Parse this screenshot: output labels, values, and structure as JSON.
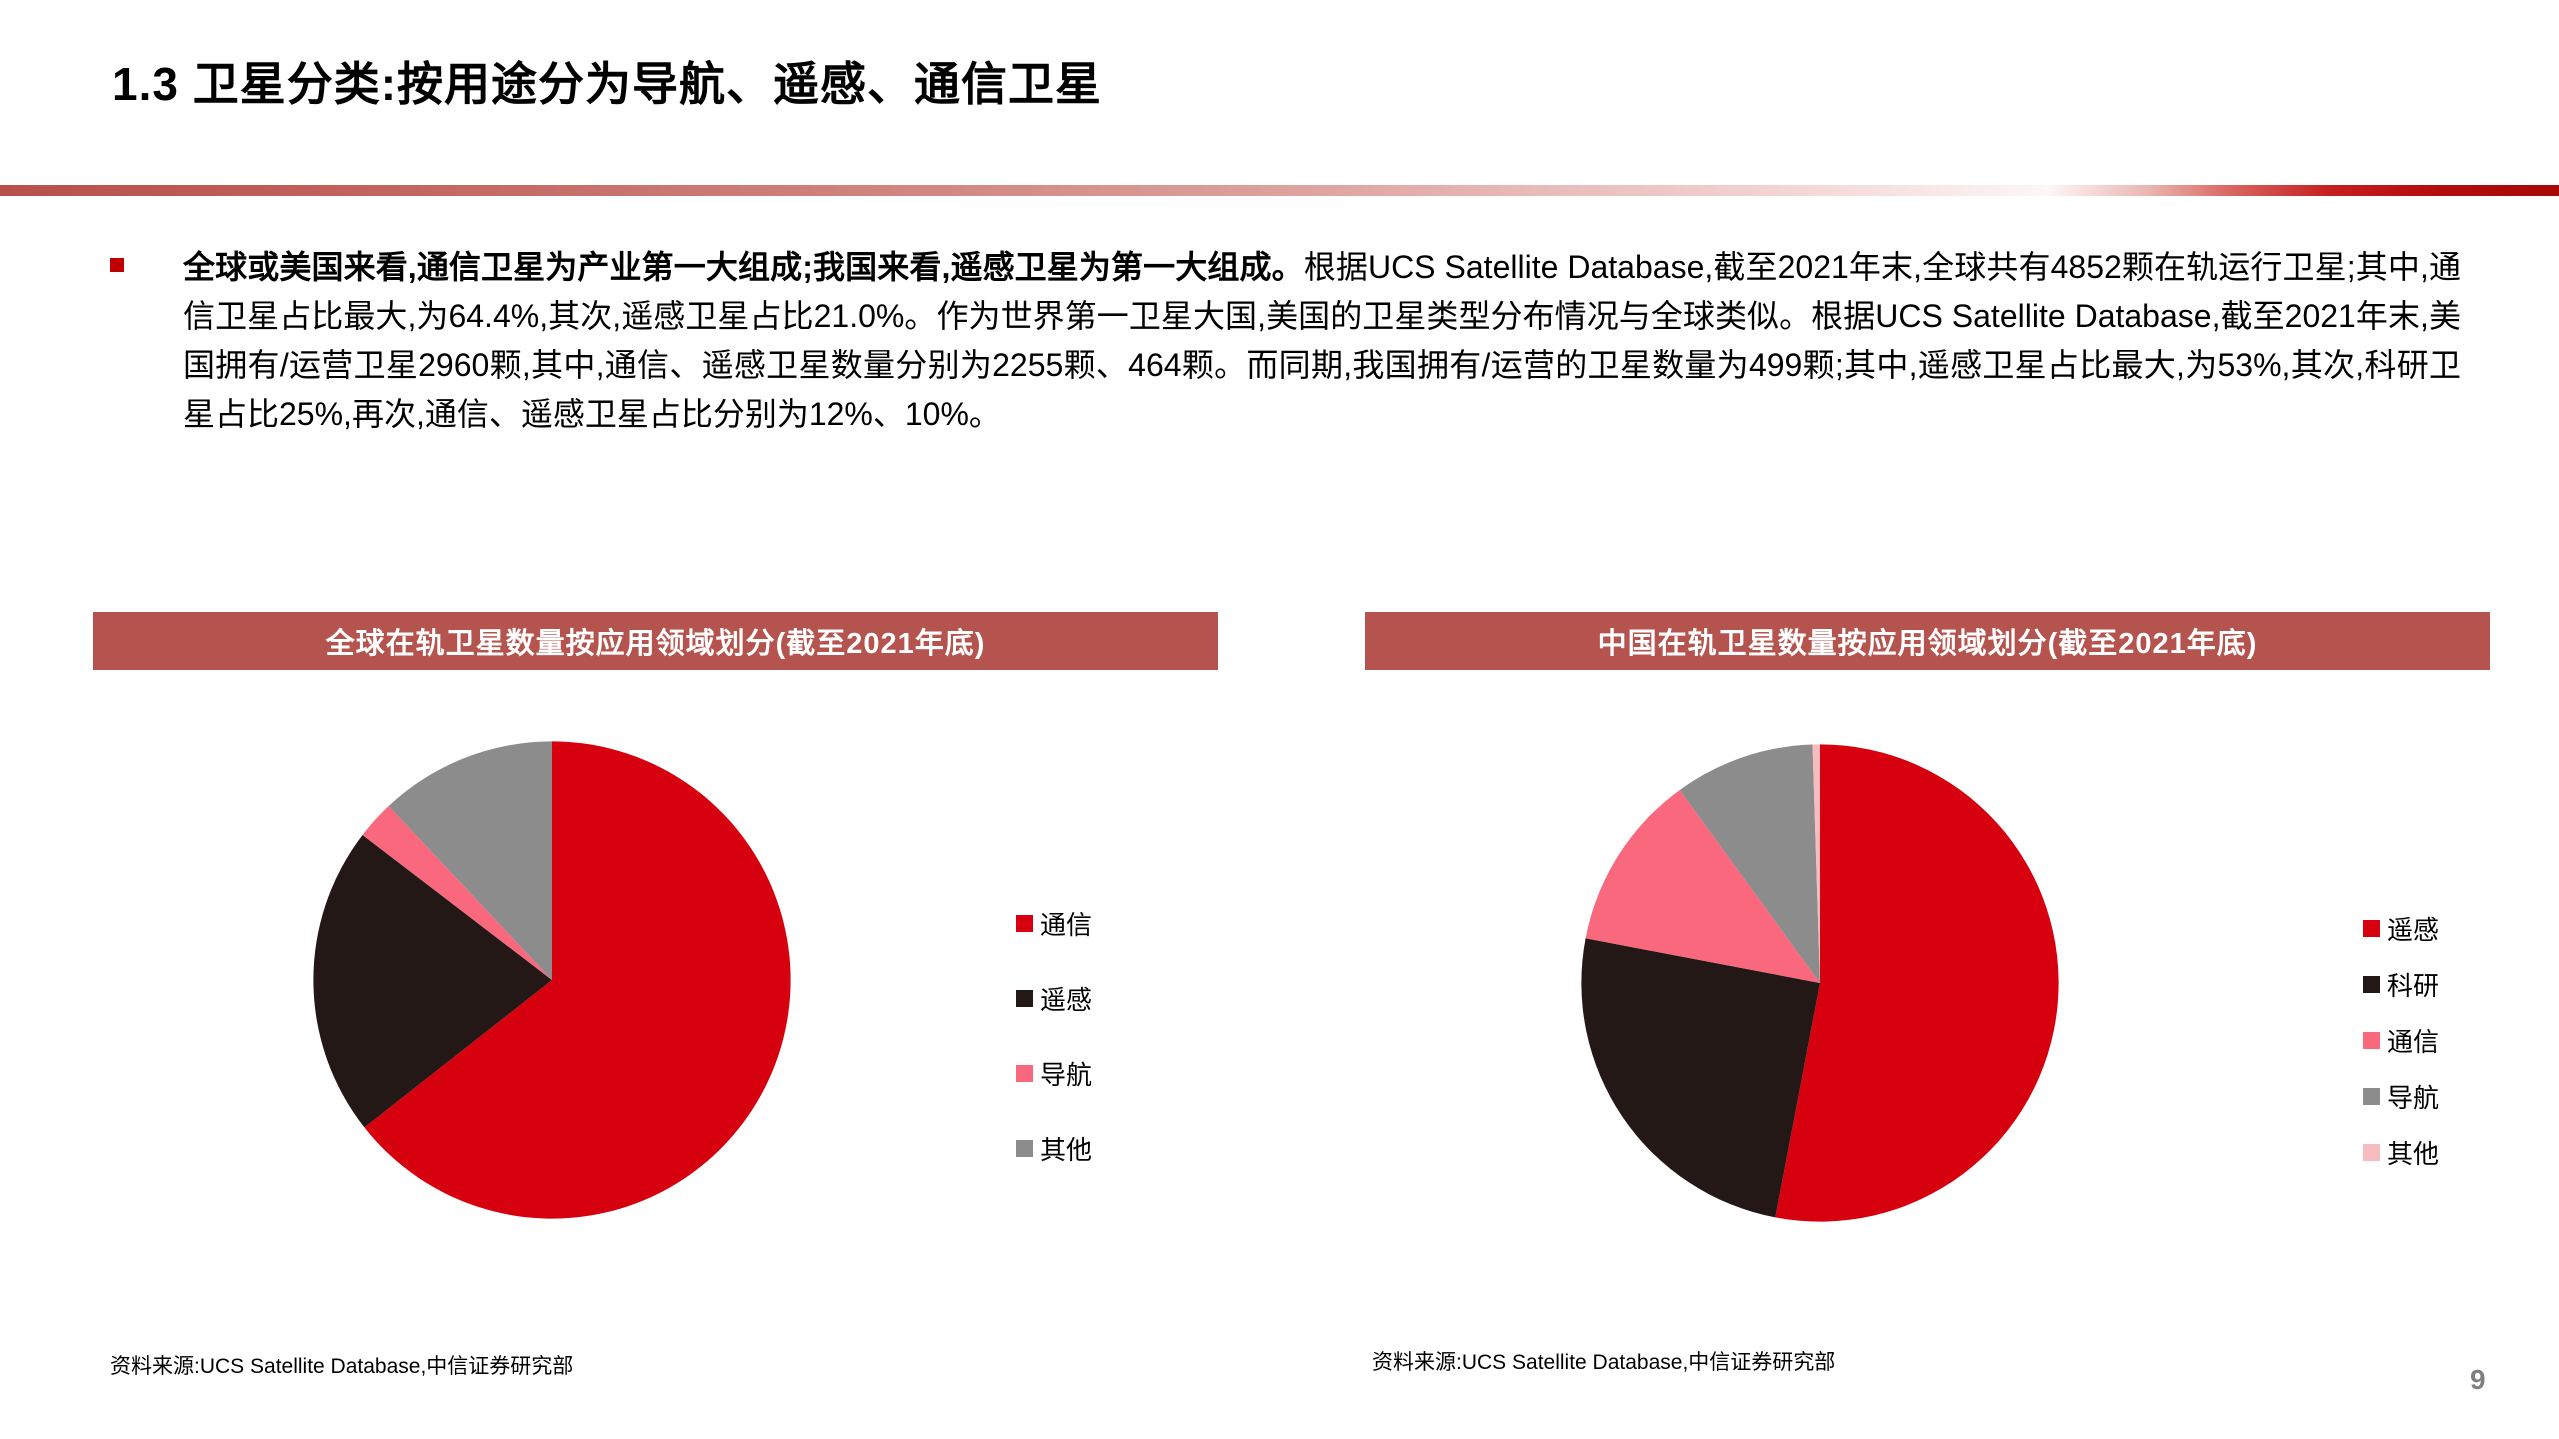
{
  "slide": {
    "title": "1.3 卫星分类:按用途分为导航、遥感、通信卫星",
    "bullet": {
      "lead": "全球或美国来看,通信卫星为产业第一大组成;我国来看,遥感卫星为第一大组成。",
      "body": "根据UCS Satellite Database,截至2021年末,全球共有4852颗在轨运行卫星;其中,通信卫星占比最大,为64.4%,其次,遥感卫星占比21.0%。作为世界第一卫星大国,美国的卫星类型分布情况与全球类似。根据UCS Satellite Database,截至2021年末,美国拥有/运营卫星2960颗,其中,通信、遥感卫星数量分别为2255颗、464颗。而同期,我国拥有/运营的卫星数量为499颗;其中,遥感卫星占比最大,为53%,其次,科研卫星占比25%,再次,通信、遥感卫星占比分别为12%、10%。"
    },
    "page_number": "9"
  },
  "colors": {
    "accent_red": "#c00000",
    "banner_red": "#b5544f",
    "pie_red": "#d7000f",
    "pie_dark": "#231815",
    "pie_pink": "#f9687d",
    "pie_gray": "#8c8c8c",
    "pie_light_pink": "#f6bcc0",
    "page_number_gray": "#7f7f7f"
  },
  "chart_data": [
    {
      "type": "pie",
      "title": "全球在轨卫星数量按应用领域划分(截至2021年底)",
      "categories": [
        "通信",
        "遥感",
        "导航",
        "其他"
      ],
      "values": [
        64.4,
        21.0,
        2.6,
        12.0
      ],
      "colors": [
        "#d7000f",
        "#231815",
        "#f9687d",
        "#8c8c8c"
      ],
      "legend_position": "right",
      "start_angle_deg": 0,
      "direction": "clockwise",
      "source": "资料来源:UCS Satellite Database,中信证券研究部"
    },
    {
      "type": "pie",
      "title": "中国在轨卫星数量按应用领域划分(截至2021年底)",
      "categories": [
        "遥感",
        "科研",
        "通信",
        "导航",
        "其他"
      ],
      "values": [
        53,
        25,
        12,
        9.5,
        0.5
      ],
      "colors": [
        "#d7000f",
        "#231815",
        "#f9687d",
        "#8c8c8c",
        "#f6bcc0"
      ],
      "legend_position": "right",
      "start_angle_deg": 0,
      "direction": "clockwise",
      "source": "资料来源:UCS Satellite Database,中信证券研究部"
    }
  ]
}
